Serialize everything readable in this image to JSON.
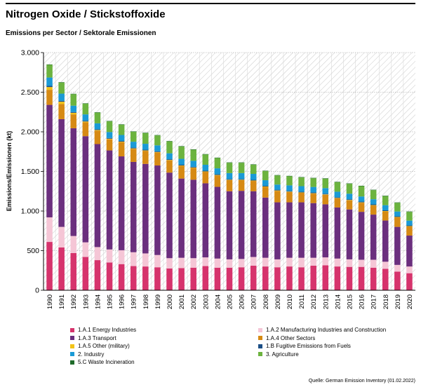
{
  "title": "Nitrogen Oxide / Stickstoffoxide",
  "subtitle": "Emissions per Sector / Sektorale Emissionen",
  "source": "Quelle: German Emission Inventory (01.02.2022)",
  "chart_data": {
    "type": "bar",
    "stacked": true,
    "ylabel": "Emissions/Emissionen (kt)",
    "xlabel": "",
    "ylim": [
      0,
      3000
    ],
    "yticks": [
      0,
      500,
      1000,
      1500,
      2000,
      2500,
      3000
    ],
    "ytick_labels": [
      "0",
      "500",
      "1.000",
      "1.500",
      "2.000",
      "2.500",
      "3.000"
    ],
    "grid": true,
    "legend_position": "bottom",
    "categories": [
      "1990",
      "1991",
      "1992",
      "1993",
      "1994",
      "1995",
      "1996",
      "1997",
      "1998",
      "1999",
      "2000",
      "2001",
      "2002",
      "2003",
      "2004",
      "2005",
      "2006",
      "2007",
      "2008",
      "2009",
      "2010",
      "2011",
      "2012",
      "2013",
      "2014",
      "2015",
      "2016",
      "2017",
      "2018",
      "2019",
      "2020"
    ],
    "series": [
      {
        "name": "1.A.1 Energy Industries",
        "color": "#d6336c",
        "values": [
          610,
          540,
          470,
          420,
          380,
          350,
          330,
          305,
          300,
          290,
          275,
          280,
          285,
          305,
          285,
          285,
          290,
          310,
          300,
          290,
          300,
          290,
          310,
          315,
          300,
          295,
          295,
          285,
          270,
          235,
          215
        ]
      },
      {
        "name": "1.A.2 Manufacturing Industries and Construction",
        "color": "#f5c6d6",
        "values": [
          310,
          260,
          215,
          185,
          165,
          165,
          175,
          175,
          165,
          155,
          130,
          130,
          120,
          110,
          115,
          105,
          105,
          110,
          110,
          100,
          110,
          120,
          100,
          100,
          100,
          95,
          90,
          100,
          90,
          85,
          85
        ]
      },
      {
        "name": "1.A.3 Transport",
        "color": "#6b2f7e",
        "values": [
          1420,
          1360,
          1360,
          1340,
          1300,
          1250,
          1185,
          1140,
          1130,
          1130,
          1080,
          1000,
          990,
          935,
          905,
          860,
          860,
          830,
          760,
          720,
          700,
          700,
          690,
          670,
          645,
          630,
          605,
          570,
          520,
          480,
          390
        ]
      },
      {
        "name": "1.A.4 Other Sectors",
        "color": "#d68a14",
        "values": [
          190,
          190,
          175,
          175,
          170,
          140,
          180,
          165,
          165,
          165,
          155,
          160,
          150,
          145,
          145,
          140,
          135,
          130,
          135,
          145,
          130,
          120,
          120,
          120,
          115,
          115,
          115,
          115,
          115,
          120,
          115
        ]
      },
      {
        "name": "1.A.5 Other (military)",
        "color": "#f2c318",
        "values": [
          35,
          30,
          20,
          10,
          8,
          8,
          6,
          6,
          5,
          5,
          5,
          5,
          5,
          5,
          5,
          5,
          5,
          5,
          5,
          5,
          5,
          5,
          5,
          5,
          5,
          5,
          5,
          5,
          5,
          5,
          5
        ]
      },
      {
        "name": "1.B Fugitive Emissions from Fuels",
        "color": "#1c4f86",
        "values": [
          15,
          12,
          10,
          10,
          9,
          9,
          9,
          9,
          9,
          9,
          9,
          9,
          9,
          9,
          9,
          9,
          9,
          9,
          9,
          9,
          9,
          9,
          9,
          9,
          9,
          9,
          9,
          9,
          9,
          9,
          9
        ]
      },
      {
        "name": "2. Industry",
        "color": "#1a9ad6",
        "values": [
          105,
          90,
          80,
          80,
          75,
          75,
          75,
          75,
          75,
          75,
          75,
          75,
          75,
          75,
          75,
          75,
          75,
          75,
          70,
          65,
          70,
          70,
          70,
          70,
          70,
          70,
          65,
          65,
          65,
          60,
          60
        ]
      },
      {
        "name": "3. Agriculture",
        "color": "#6cb33f",
        "values": [
          160,
          140,
          145,
          135,
          135,
          135,
          130,
          125,
          135,
          125,
          150,
          155,
          140,
          130,
          130,
          130,
          130,
          115,
          115,
          115,
          115,
          110,
          110,
          120,
          120,
          125,
          130,
          115,
          115,
          110,
          110
        ]
      },
      {
        "name": "5.C Waste Incineration",
        "color": "#1f6b2a",
        "values": [
          5,
          5,
          5,
          5,
          5,
          5,
          5,
          5,
          5,
          5,
          5,
          5,
          5,
          5,
          5,
          5,
          5,
          5,
          5,
          5,
          5,
          5,
          5,
          5,
          5,
          5,
          5,
          5,
          5,
          5,
          5
        ]
      }
    ]
  },
  "legend": {
    "columns": 2
  }
}
